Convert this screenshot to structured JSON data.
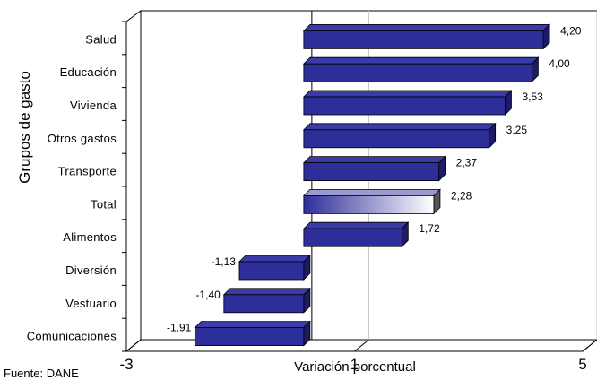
{
  "chart_data": {
    "type": "bar",
    "orientation": "horizontal",
    "ylabel": "Grupos de gasto",
    "xlabel": "Variación porcentual",
    "source": "Fuente: DANE",
    "xlim": [
      -3,
      5
    ],
    "xticks": [
      "-3",
      "1",
      "5"
    ],
    "grid": true,
    "legend": "none",
    "colors": {
      "bar": "#2e2e9a",
      "bar_side": "#1b1b66",
      "highlight_start": "#2e2e9a",
      "highlight_end": "#ffffff"
    },
    "highlight": "Total",
    "categories": [
      "Salud",
      "Educación",
      "Vivienda",
      "Otros gastos",
      "Transporte",
      "Total",
      "Alimentos",
      "Diversión",
      "Vestuario",
      "Comunicaciones"
    ],
    "values": [
      4.2,
      4.0,
      3.53,
      3.25,
      2.37,
      2.28,
      1.72,
      -1.13,
      -1.4,
      -1.91
    ],
    "value_labels": [
      "4,20",
      "4,00",
      "3,53",
      "3,25",
      "2,37",
      "2,28",
      "1,72",
      "-1,13",
      "-1,40",
      "-1,91"
    ]
  }
}
